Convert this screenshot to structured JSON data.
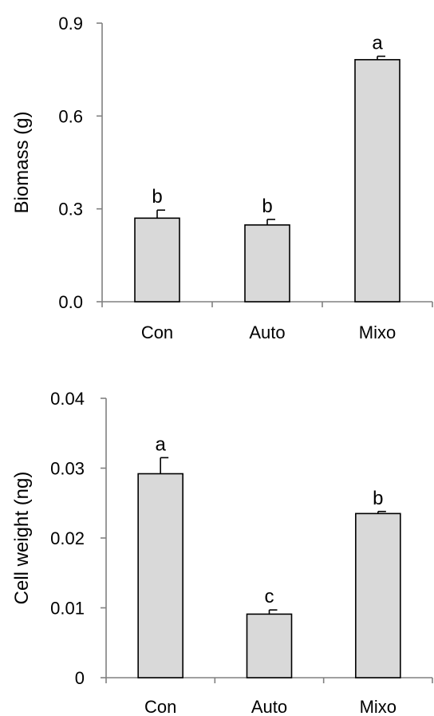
{
  "chart_data": [
    {
      "type": "bar",
      "categories": [
        "Con",
        "Auto",
        "Mixo"
      ],
      "values": [
        0.27,
        0.248,
        0.782
      ],
      "errors": [
        0.026,
        0.018,
        0.011
      ],
      "significance_letters": [
        "b",
        "b",
        "a"
      ],
      "ylabel": "Biomass (g)",
      "ylim": [
        0,
        0.9
      ],
      "yticks": [
        "0.0",
        "0.3",
        "0.6",
        "0.9"
      ],
      "grid": false,
      "bar_color": "#d9d9d9"
    },
    {
      "type": "bar",
      "categories": [
        "Con",
        "Auto",
        "Mixo"
      ],
      "values": [
        0.0292,
        0.0091,
        0.0235
      ],
      "errors": [
        0.0023,
        0.0006,
        0.0003
      ],
      "significance_letters": [
        "a",
        "c",
        "b"
      ],
      "ylabel": "Cell weight (ng)",
      "ylim": [
        0,
        0.04
      ],
      "yticks": [
        "0",
        "0.01",
        "0.02",
        "0.03",
        "0.04"
      ],
      "grid": false,
      "bar_color": "#d9d9d9"
    }
  ]
}
